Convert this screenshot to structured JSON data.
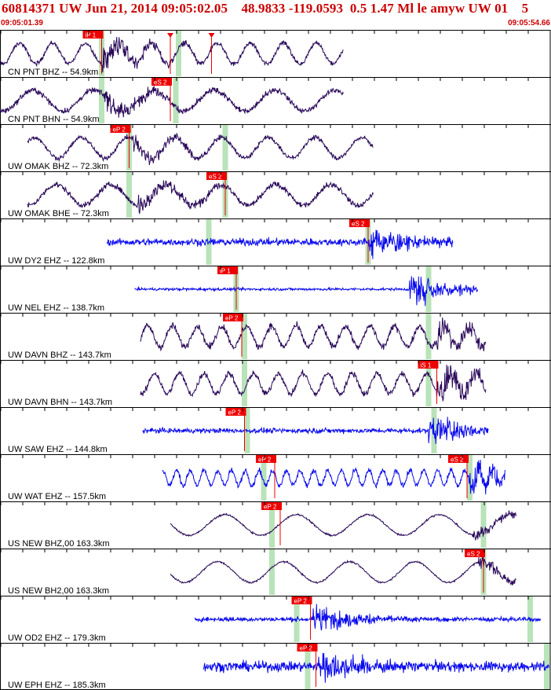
{
  "header": {
    "title": "60814371 UW Jun 21, 2014 09:05:02.05    48.9833 -119.0593  0.5 1.47 Ml le amyw UW 01    5",
    "time_start": "09:05:01.39",
    "time_end": "09:05:54.66"
  },
  "colors": {
    "title": "#cc0000",
    "trace_velocity": "#2a0a5a",
    "trace_short_period": "#0a0aee",
    "pick": "#ee0000",
    "window": "#b9e3b9",
    "frame": "#000000"
  },
  "chart_data": {
    "type": "line",
    "title": "60814371 UW Jun 21, 2014 09:05:02.05    48.9833 -119.0593  0.5 1.47 Ml le amyw UW 01    5",
    "x_range": [
      "09:05:01.39",
      "09:05:54.66"
    ],
    "traces": [
      {
        "label": "CN PNT BHZ -- 54.9km",
        "kind": "velocity",
        "start": 0.0,
        "end": 0.625,
        "onset": 0.185,
        "osc_period": 0.06,
        "noise": 0.2,
        "burst_amp": 0.7,
        "windows": [
          0.185,
          0.325
        ],
        "picks": [
          {
            "label": "iP 1",
            "t": 0.185
          },
          {
            "t": 0.31
          },
          {
            "t": 0.385
          }
        ]
      },
      {
        "label": "CN PNT BHN -- 54.9km",
        "kind": "velocity",
        "start": 0.0,
        "end": 0.625,
        "onset": 0.19,
        "osc_period": 0.11,
        "noise": 0.25,
        "burst_amp": 0.6,
        "windows": [
          0.185,
          0.32
        ],
        "picks": [
          {
            "label": "eS 2",
            "t": 0.31
          }
        ]
      },
      {
        "label": "UW OMAK BHZ -- 72.3km",
        "kind": "velocity",
        "start": 0.05,
        "end": 0.68,
        "onset": 0.24,
        "osc_period": 0.085,
        "noise": 0.2,
        "burst_amp": 0.55,
        "windows": [
          0.235,
          0.41
        ],
        "picks": [
          {
            "label": "eP 2",
            "t": 0.235
          }
        ]
      },
      {
        "label": "UW OMAK BHE -- 72.3km",
        "kind": "velocity",
        "start": 0.05,
        "end": 0.68,
        "onset": 0.25,
        "osc_period": 0.1,
        "noise": 0.25,
        "burst_amp": 0.6,
        "windows": [
          0.235,
          0.41
        ],
        "picks": [
          {
            "label": "eS 2",
            "t": 0.41
          }
        ]
      },
      {
        "label": "UW DY2 EHZ -- 122.8km",
        "kind": "short_period",
        "start": 0.195,
        "end": 0.825,
        "onset": 0.67,
        "osc_period": 0.0,
        "noise": 0.32,
        "burst_amp": 0.85,
        "windows": [
          0.38,
          0.67
        ],
        "picks": [
          {
            "label": "eS 2",
            "t": 0.67
          }
        ]
      },
      {
        "label": "UW NEL EHZ -- 138.7km",
        "kind": "short_period",
        "start": 0.245,
        "end": 0.87,
        "onset": 0.745,
        "osc_period": 0.0,
        "noise": 0.12,
        "burst_amp": 0.9,
        "windows": [
          0.43,
          0.78
        ],
        "picks": [
          {
            "label": "iP 1",
            "t": 0.43
          }
        ]
      },
      {
        "label": "UW DAVN BHZ -- 143.7km",
        "kind": "velocity",
        "start": 0.255,
        "end": 0.885,
        "onset": 0.795,
        "osc_period": 0.045,
        "noise": 0.3,
        "burst_amp": 0.75,
        "windows": [
          0.445,
          0.78
        ],
        "picks": [
          {
            "label": "eP 2",
            "t": 0.44
          }
        ]
      },
      {
        "label": "UW DAVN BHN -- 143.7km",
        "kind": "velocity",
        "start": 0.255,
        "end": 0.885,
        "onset": 0.795,
        "osc_period": 0.045,
        "noise": 0.28,
        "burst_amp": 0.85,
        "windows": [
          0.445,
          0.78
        ],
        "picks": [
          {
            "label": "iS 1",
            "t": 0.795
          }
        ]
      },
      {
        "label": "UW SAW EHZ -- 144.8km",
        "kind": "short_period",
        "start": 0.26,
        "end": 0.89,
        "onset": 0.78,
        "osc_period": 0.0,
        "noise": 0.22,
        "burst_amp": 0.9,
        "windows": [
          0.45,
          0.79
        ],
        "picks": [
          {
            "label": "eP 2",
            "t": 0.445
          }
        ]
      },
      {
        "label": "UW WAT EHZ -- 157.5km",
        "kind": "short_period",
        "start": 0.295,
        "end": 0.92,
        "onset": 0.855,
        "osc_period": 0.025,
        "noise": 0.25,
        "burst_amp": 0.85,
        "windows": [
          0.48,
          0.855
        ],
        "picks": [
          {
            "label": "eP 2",
            "t": 0.5
          },
          {
            "label": "eS 2",
            "t": 0.85
          }
        ]
      },
      {
        "label": "US NEW BHZ,00 163.3km",
        "kind": "velocity",
        "start": 0.31,
        "end": 0.94,
        "onset": 0.86,
        "osc_period": 0.13,
        "noise": 0.08,
        "burst_amp": 0.35,
        "windows": [
          0.495,
          0.88
        ],
        "picks": [
          {
            "label": "eP 2",
            "t": 0.51
          }
        ]
      },
      {
        "label": "US NEW BH2,00 163.3km",
        "kind": "velocity",
        "start": 0.31,
        "end": 0.94,
        "onset": 0.87,
        "osc_period": 0.12,
        "noise": 0.08,
        "burst_amp": 0.4,
        "windows": [
          0.495,
          0.88
        ],
        "picks": [
          {
            "label": "eS 2",
            "t": 0.88
          }
        ]
      },
      {
        "label": "UW OD2 EHZ -- 179.3km",
        "kind": "short_period",
        "start": 0.355,
        "end": 0.985,
        "onset": 0.57,
        "osc_period": 0.0,
        "noise": 0.2,
        "burst_amp": 0.75,
        "windows": [
          0.54,
          0.965
        ],
        "picks": [
          {
            "label": "eP 2",
            "t": 0.565
          }
        ]
      },
      {
        "label": "UW EPH EHZ -- 185.3km",
        "kind": "short_period",
        "start": 0.37,
        "end": 1.0,
        "onset": 0.58,
        "osc_period": 0.0,
        "noise": 0.45,
        "burst_amp": 0.85,
        "windows": [
          0.56,
          0.995
        ],
        "picks": [
          {
            "label": "eP 2",
            "t": 0.575
          }
        ]
      }
    ]
  }
}
